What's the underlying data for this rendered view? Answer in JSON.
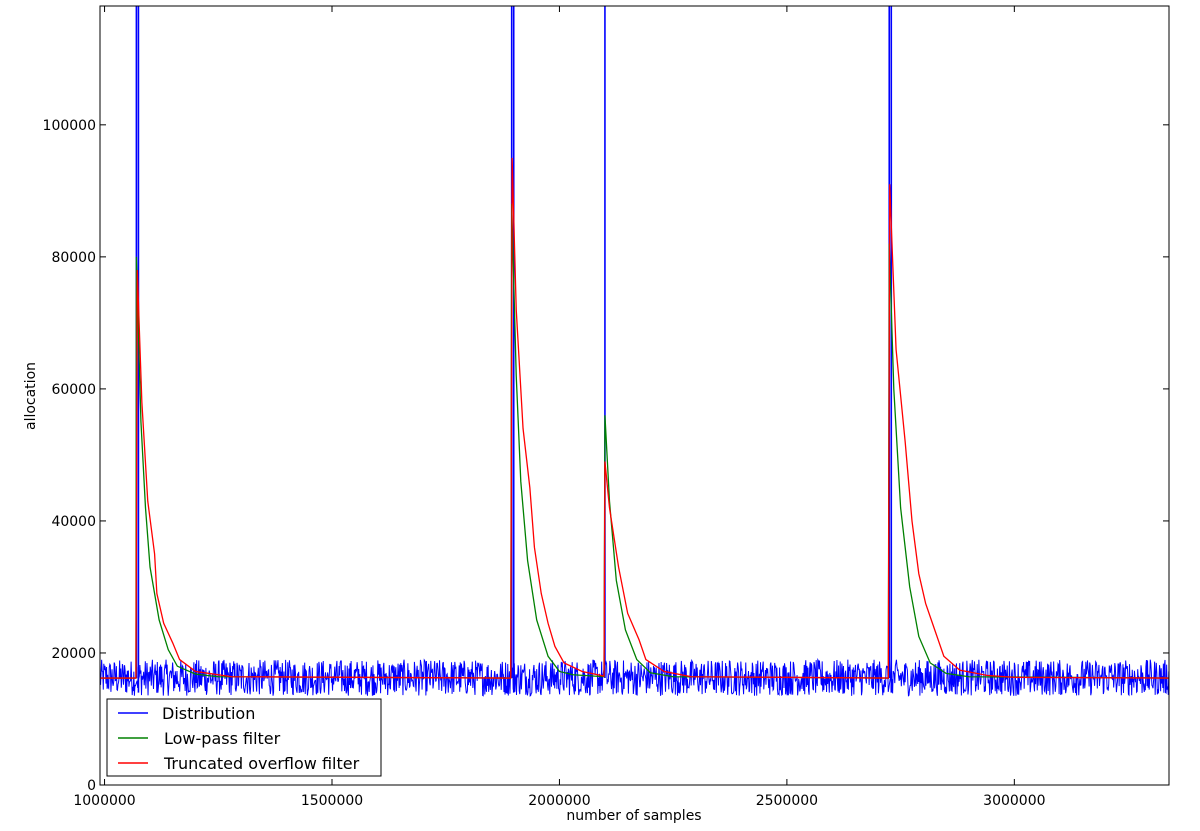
{
  "chart_data": {
    "type": "line",
    "title": "",
    "xlabel": "number of samples",
    "ylabel": "allocation",
    "xlim": [
      990000,
      3340000
    ],
    "ylim": [
      0,
      118000
    ],
    "x_ticks": [
      1000000,
      1500000,
      2000000,
      2500000,
      3000000
    ],
    "x_tick_labels": [
      "1000000",
      "1500000",
      "2000000",
      "2500000",
      "3000000"
    ],
    "y_ticks": [
      0,
      20000,
      40000,
      60000,
      80000,
      100000
    ],
    "y_tick_labels": [
      "0",
      "20000",
      "40000",
      "60000",
      "80000",
      "100000"
    ],
    "grid": false,
    "legend_position": "lower-left",
    "baseline": 16200,
    "noise_band": [
      13500,
      19000
    ],
    "spikes": [
      1070000,
      1895000,
      2100000,
      2725000
    ],
    "series": [
      {
        "name": "Distribution",
        "color": "#0000ff",
        "description_points": [
          [
            990000,
            16200
          ],
          [
            1068000,
            16200
          ],
          [
            1070000,
            118000
          ],
          [
            1072000,
            118000
          ],
          [
            1075000,
            14000
          ],
          [
            1893000,
            16200
          ],
          [
            1895000,
            118000
          ],
          [
            1897000,
            118000
          ],
          [
            1900000,
            14000
          ],
          [
            2098000,
            16200
          ],
          [
            2100000,
            118000
          ],
          [
            2102000,
            16200
          ],
          [
            2723000,
            16200
          ],
          [
            2725000,
            118000
          ],
          [
            2727000,
            118000
          ],
          [
            2730000,
            14000
          ],
          [
            3340000,
            16200
          ]
        ]
      },
      {
        "name": "Low-pass filter",
        "color": "#008000",
        "points": [
          [
            990000,
            16200
          ],
          [
            1069000,
            16200
          ],
          [
            1070000,
            80000
          ],
          [
            1080000,
            55000
          ],
          [
            1090000,
            42000
          ],
          [
            1100000,
            33000
          ],
          [
            1120000,
            25000
          ],
          [
            1140000,
            20500
          ],
          [
            1160000,
            18000
          ],
          [
            1200000,
            16800
          ],
          [
            1250000,
            16400
          ],
          [
            1893000,
            16200
          ],
          [
            1895000,
            88000
          ],
          [
            1905000,
            62000
          ],
          [
            1915000,
            46000
          ],
          [
            1930000,
            34000
          ],
          [
            1950000,
            25000
          ],
          [
            1975000,
            19500
          ],
          [
            2000000,
            17200
          ],
          [
            2030000,
            16700
          ],
          [
            2098000,
            16400
          ],
          [
            2100000,
            56000
          ],
          [
            2110000,
            43000
          ],
          [
            2125000,
            31000
          ],
          [
            2145000,
            23500
          ],
          [
            2170000,
            19000
          ],
          [
            2200000,
            17000
          ],
          [
            2250000,
            16400
          ],
          [
            2723000,
            16200
          ],
          [
            2725000,
            82000
          ],
          [
            2735000,
            60000
          ],
          [
            2750000,
            42000
          ],
          [
            2770000,
            30000
          ],
          [
            2790000,
            22500
          ],
          [
            2815000,
            18500
          ],
          [
            2850000,
            16900
          ],
          [
            2900000,
            16400
          ],
          [
            3340000,
            16200
          ]
        ]
      },
      {
        "name": "Truncated overflow filter",
        "color": "#ff0000",
        "points": [
          [
            990000,
            16200
          ],
          [
            1069000,
            16200
          ],
          [
            1072000,
            78000
          ],
          [
            1082000,
            58000
          ],
          [
            1095000,
            43000
          ],
          [
            1110000,
            35000
          ],
          [
            1115000,
            29000
          ],
          [
            1130000,
            24500
          ],
          [
            1150000,
            21500
          ],
          [
            1165000,
            19000
          ],
          [
            1200000,
            17200
          ],
          [
            1280000,
            16400
          ],
          [
            1893000,
            16200
          ],
          [
            1896000,
            95000
          ],
          [
            1905000,
            72000
          ],
          [
            1920000,
            54000
          ],
          [
            1935000,
            45000
          ],
          [
            1945000,
            36000
          ],
          [
            1960000,
            29000
          ],
          [
            1975000,
            24500
          ],
          [
            1990000,
            21000
          ],
          [
            2010000,
            18500
          ],
          [
            2050000,
            17200
          ],
          [
            2098000,
            16500
          ],
          [
            2100000,
            49000
          ],
          [
            2110000,
            42000
          ],
          [
            2130000,
            33000
          ],
          [
            2150000,
            26000
          ],
          [
            2175000,
            22000
          ],
          [
            2190000,
            19000
          ],
          [
            2230000,
            17200
          ],
          [
            2290000,
            16400
          ],
          [
            2723000,
            16200
          ],
          [
            2726000,
            91000
          ],
          [
            2740000,
            66000
          ],
          [
            2760000,
            52000
          ],
          [
            2775000,
            40000
          ],
          [
            2790000,
            32000
          ],
          [
            2805000,
            27500
          ],
          [
            2825000,
            23500
          ],
          [
            2845000,
            19500
          ],
          [
            2880000,
            17400
          ],
          [
            2940000,
            16600
          ],
          [
            3000000,
            16300
          ],
          [
            3340000,
            16200
          ]
        ]
      }
    ]
  }
}
